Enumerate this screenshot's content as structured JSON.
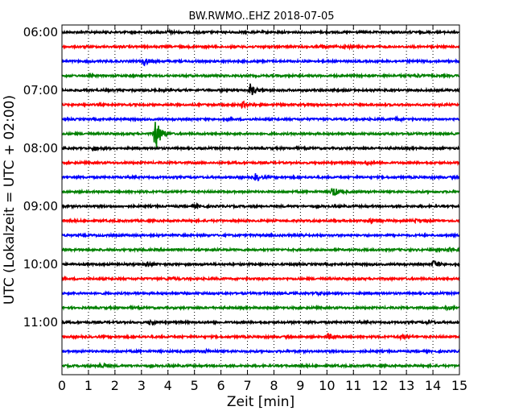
{
  "chart_data": {
    "type": "line",
    "title": "BW.RWMO..EHZ 2018-07-05",
    "xlabel": "Zeit  [min]",
    "ylabel": "UTC (Lokalzeit = UTC + 02:00)",
    "xlim": [
      0,
      15
    ],
    "x_ticks": [
      "0",
      "1",
      "2",
      "3",
      "4",
      "5",
      "6",
      "7",
      "8",
      "9",
      "10",
      "11",
      "12",
      "13",
      "14",
      "15"
    ],
    "y_ticks": [
      "06:00",
      "07:00",
      "08:00",
      "09:00",
      "10:00",
      "11:00"
    ],
    "trace_interval_min": 15,
    "grid": true,
    "trace_colors": [
      "#000000",
      "#ff0000",
      "#0000ff",
      "#008000"
    ],
    "traces": [
      {
        "start": "06:00",
        "events": [
          {
            "t": 4.0,
            "a": 2
          }
        ]
      },
      {
        "start": "06:15",
        "events": [
          {
            "t": 9.8,
            "a": 2
          },
          {
            "t": 10.7,
            "a": 2
          }
        ]
      },
      {
        "start": "06:30",
        "events": [
          {
            "t": 3.1,
            "a": 5
          }
        ]
      },
      {
        "start": "06:45",
        "events": [
          {
            "t": 13.4,
            "a": 2
          }
        ]
      },
      {
        "start": "07:00",
        "events": [
          {
            "t": 7.1,
            "a": 8
          }
        ]
      },
      {
        "start": "07:15",
        "events": [
          {
            "t": 6.8,
            "a": 4
          }
        ]
      },
      {
        "start": "07:30",
        "events": [
          {
            "t": 12.6,
            "a": 2
          }
        ]
      },
      {
        "start": "07:45",
        "events": [
          {
            "t": 3.5,
            "a": 25
          }
        ]
      },
      {
        "start": "08:00",
        "events": [
          {
            "t": 1.2,
            "a": 3
          }
        ]
      },
      {
        "start": "08:15",
        "events": [
          {
            "t": 11.5,
            "a": 2
          }
        ]
      },
      {
        "start": "08:30",
        "events": [
          {
            "t": 7.3,
            "a": 4
          }
        ]
      },
      {
        "start": "08:45",
        "events": [
          {
            "t": 10.2,
            "a": 7
          }
        ]
      },
      {
        "start": "09:00",
        "events": [
          {
            "t": 5.0,
            "a": 2
          }
        ]
      },
      {
        "start": "09:15",
        "events": [
          {
            "t": 11.6,
            "a": 3
          },
          {
            "t": 13.3,
            "a": 2
          }
        ]
      },
      {
        "start": "09:30",
        "events": [
          {
            "t": 9.0,
            "a": 1
          }
        ]
      },
      {
        "start": "09:45",
        "events": [
          {
            "t": 14.6,
            "a": 3
          }
        ]
      },
      {
        "start": "10:00",
        "events": [
          {
            "t": 3.2,
            "a": 3
          },
          {
            "t": 14.0,
            "a": 5
          }
        ]
      },
      {
        "start": "10:15",
        "events": [
          {
            "t": 4.0,
            "a": 2
          }
        ]
      },
      {
        "start": "10:30",
        "events": [
          {
            "t": 9.6,
            "a": 2
          }
        ]
      },
      {
        "start": "10:45",
        "events": [
          {
            "t": 14.5,
            "a": 3
          }
        ]
      },
      {
        "start": "11:00",
        "events": [
          {
            "t": 3.3,
            "a": 3
          },
          {
            "t": 13.8,
            "a": 2
          }
        ]
      },
      {
        "start": "11:15",
        "events": [
          {
            "t": 10.0,
            "a": 4
          },
          {
            "t": 12.8,
            "a": 3
          }
        ]
      },
      {
        "start": "11:30",
        "events": [
          {
            "t": 5.4,
            "a": 2
          }
        ]
      },
      {
        "start": "11:45",
        "events": [
          {
            "t": 1.4,
            "a": 4
          }
        ]
      }
    ]
  }
}
